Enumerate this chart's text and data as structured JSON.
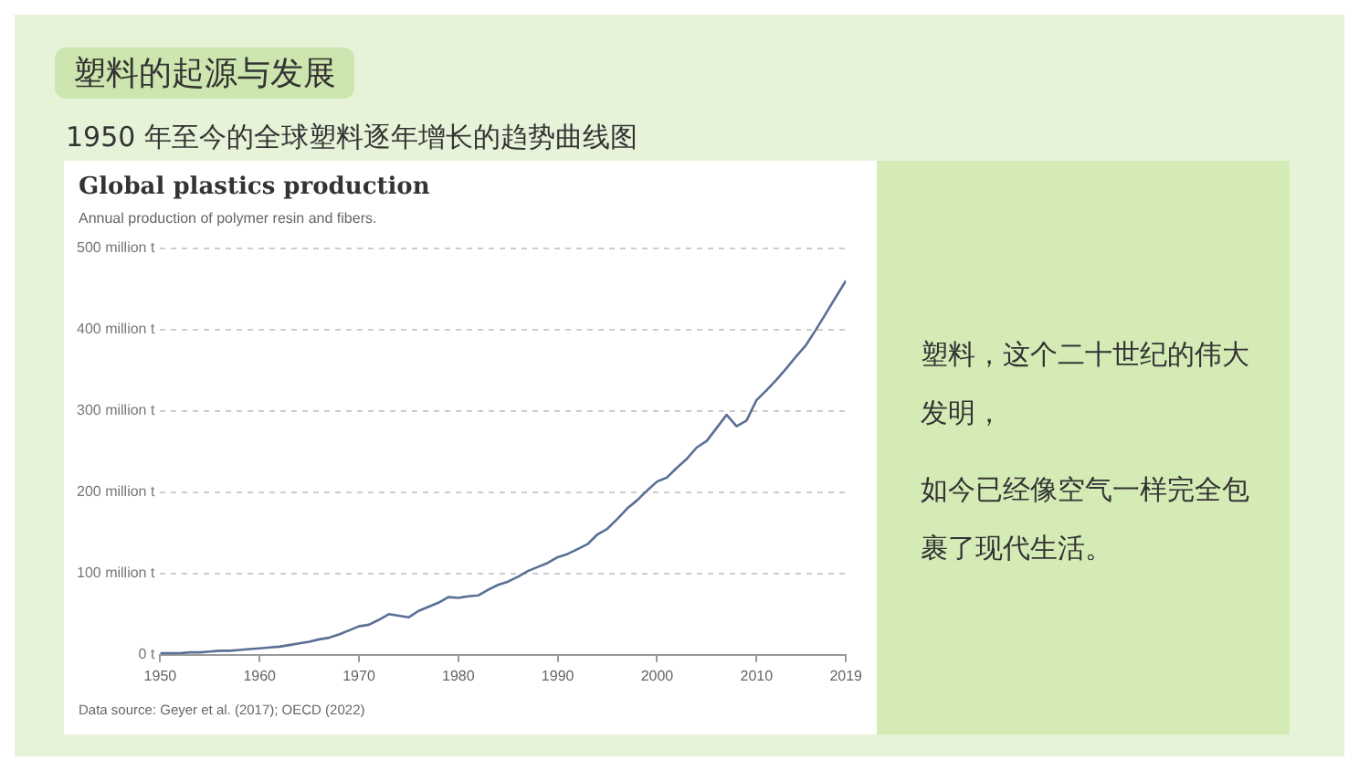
{
  "chart_data": [
    {
      "type": "line",
      "title": "Global plastics production",
      "subtitle": "Annual production of polymer resin and fibers.",
      "annotations": [
        "塑料的起源与发展",
        "1950 年至今的全球塑料逐年增长的趋势曲线图",
        "Data source: Geyer et al. (2017); OECD (2022)"
      ],
      "x": [
        1950,
        1951,
        1952,
        1953,
        1954,
        1955,
        1956,
        1957,
        1958,
        1959,
        1960,
        1961,
        1962,
        1963,
        1964,
        1965,
        1966,
        1967,
        1968,
        1969,
        1970,
        1971,
        1972,
        1973,
        1974,
        1975,
        1976,
        1977,
        1978,
        1979,
        1980,
        1981,
        1982,
        1983,
        1984,
        1985,
        1986,
        1987,
        1988,
        1989,
        1990,
        1991,
        1992,
        1993,
        1994,
        1995,
        1996,
        1997,
        1998,
        1999,
        2000,
        2001,
        2002,
        2003,
        2004,
        2005,
        2006,
        2007,
        2008,
        2009,
        2010,
        2011,
        2012,
        2013,
        2014,
        2015,
        2016,
        2017,
        2018,
        2019
      ],
      "series": [
        {
          "color": "#5a6f96",
          "values": [
            2,
            2,
            2,
            3,
            3,
            4,
            5,
            5,
            6,
            7,
            8,
            9,
            10,
            12,
            14,
            16,
            19,
            21,
            25,
            30,
            35,
            37,
            43,
            50,
            48,
            46,
            54,
            59,
            64,
            71,
            70,
            72,
            73,
            80,
            86,
            90,
            96,
            103,
            108,
            113,
            120,
            124,
            130,
            136,
            148,
            155,
            167,
            180,
            190,
            202,
            213,
            218,
            230,
            241,
            255,
            263,
            279,
            295,
            281,
            288,
            313,
            325,
            338,
            352,
            367,
            381,
            400,
            420,
            440,
            460
          ]
        }
      ],
      "xlim": [
        1950,
        2019
      ],
      "xticks": [
        1950,
        1960,
        1970,
        1980,
        1990,
        2000,
        2010,
        2019
      ],
      "ylim": [
        0,
        500
      ],
      "yticks": [
        {
          "value": 0,
          "label": "0 t"
        },
        {
          "value": 100,
          "label": "100 million t"
        },
        {
          "value": 200,
          "label": "200 million t"
        },
        {
          "value": 300,
          "label": "300 million t"
        },
        {
          "value": 400,
          "label": "400 million t"
        },
        {
          "value": 500,
          "label": "500 million t"
        }
      ],
      "grid": "y"
    },
    {
      "type": "other",
      "annotations": [
        "塑料，这个二十世纪的伟大发明，",
        "如今已经像空气一样完全包裹了现代生活。"
      ]
    }
  ]
}
